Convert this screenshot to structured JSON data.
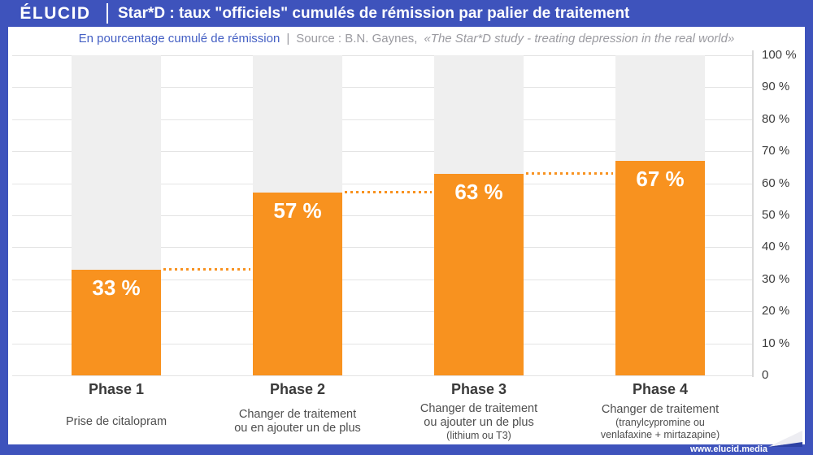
{
  "header": {
    "logo": "ÉLUCID",
    "title": "Star*D : taux \"officiels\" cumulés de rémission par palier de traitement"
  },
  "subtitle": {
    "label": "En pourcentage cumulé de rémission",
    "separator": "|",
    "source_prefix": "Source : B.N. Gaynes,",
    "source_quote": "«The Star*D study - treating depression in the real world»"
  },
  "footer": {
    "url": "www.elucid.media"
  },
  "colors": {
    "blue": "#3E53BC",
    "orange": "#F8921F",
    "gray_bar": "#EFEFEF",
    "subtitle_blue": "#4560C4",
    "subtitle_gray": "#9A9AA0"
  },
  "chart_data": {
    "type": "bar",
    "title": "Star*D : taux \"officiels\" cumulés de rémission par palier de traitement",
    "ylabel": "En pourcentage cumulé de rémission",
    "ylim": [
      0,
      100
    ],
    "grid": true,
    "categories": [
      "Phase 1",
      "Phase 2",
      "Phase 3",
      "Phase 4"
    ],
    "values": [
      33,
      57,
      63,
      67
    ],
    "value_labels": [
      "33 %",
      "57 %",
      "63 %",
      "67 %"
    ],
    "remainder_to": 100,
    "y_tick_values": [
      100,
      90,
      80,
      70,
      60,
      50,
      40,
      30,
      20,
      10,
      0
    ],
    "y_ticks": [
      "100 %",
      "90 %",
      "80 %",
      "70 %",
      "60 %",
      "50 %",
      "40 %",
      "30 %",
      "20 %",
      "10 %",
      "0"
    ],
    "phases": [
      {
        "label": "Phase 1",
        "lines": [
          {
            "text": "Prise de citalopram",
            "small": false
          }
        ]
      },
      {
        "label": "Phase 2",
        "lines": [
          {
            "text": "Changer de traitement",
            "small": false
          },
          {
            "text": "ou en ajouter un de plus",
            "small": false
          }
        ]
      },
      {
        "label": "Phase 3",
        "lines": [
          {
            "text": "Changer de traitement",
            "small": false
          },
          {
            "text": "ou ajouter un de plus",
            "small": false
          },
          {
            "text": "(lithium ou T3)",
            "small": true
          }
        ]
      },
      {
        "label": "Phase 4",
        "lines": [
          {
            "text": "Changer de traitement",
            "small": false
          },
          {
            "text": "(tranylcypromine ou",
            "small": true
          },
          {
            "text": "venlafaxine + mirtazapine)",
            "small": true
          }
        ]
      }
    ]
  }
}
